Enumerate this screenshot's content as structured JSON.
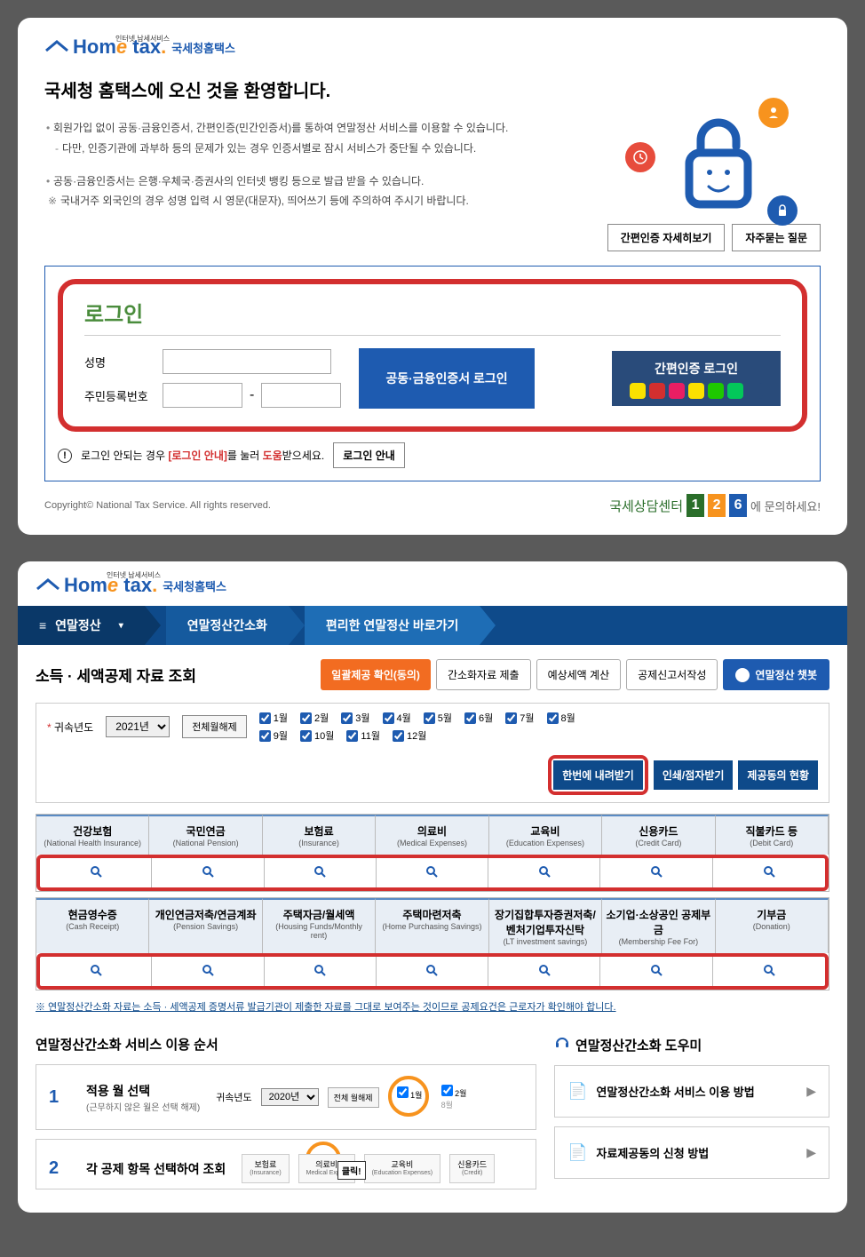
{
  "logo": {
    "hom": "Hom",
    "e": "e",
    "tax": "tax",
    "dot": ".",
    "sub": "국세청홈택스",
    "caption": "인터넷 납세서비스"
  },
  "welcome": {
    "title": "국세청 홈택스에 오신 것을 환영합니다.",
    "info1": "회원가입 없이 공동·금융인증서, 간편인증(민간인증서)를 통하여 연말정산 서비스를 이용할 수 있습니다.",
    "info1a": "다만, 인증기관에 과부하 등의 문제가 있는 경우 인증서별로 잠시 서비스가 중단될 수 있습니다.",
    "info2": "공동·금융인증서는 은행·우체국·증권사의 인터넷 뱅킹 등으로 발급 받을 수 있습니다.",
    "info2a": "국내거주 외국인의 경우 성명 입력 시 영문(대문자), 띄어쓰기 등에 주의하여 주시기 바랍니다.",
    "btn_simple": "간편인증 자세히보기",
    "btn_faq": "자주묻는 질문"
  },
  "login": {
    "title": "로그인",
    "name_label": "성명",
    "rrn_label": "주민등록번호",
    "btn_cert": "공동·금융인증서 로그인",
    "btn_simple": "간편인증 로그인",
    "help_text1": "로그인 안되는 경우 ",
    "help_red": "[로그인 안내]",
    "help_text2": "를 눌러 ",
    "help_red2": "도움",
    "help_text3": "받으세요.",
    "btn_help": "로그인 안내",
    "mini_colors": [
      "#fae100",
      "#d32f2f",
      "#e91e63",
      "#fae100",
      "#1ec800",
      "#03c75a",
      "#294b7a"
    ]
  },
  "footer": {
    "copyright": "Copyright© National Tax Service. All rights reserved.",
    "contact_script": "국세상담센터",
    "contact_tail": "에 문의하세요!"
  },
  "nav": {
    "hamburger": "≡",
    "main": "연말정산",
    "caret": "▾",
    "sub1": "연말정산간소화",
    "sub2": "편리한 연말정산 바로가기"
  },
  "section2": {
    "title": "소득 · 세액공제 자료 조회",
    "btn_confirm": "일괄제공 확인(동의)",
    "btn_submit": "간소화자료 제출",
    "btn_calc": "예상세액 계산",
    "btn_report": "공제신고서작성",
    "btn_chatbot": "연말정산 챗봇"
  },
  "filter": {
    "year_label": "귀속년도",
    "year_value": "2021년",
    "toggle_all": "전체월해제",
    "months": [
      "1월",
      "2월",
      "3월",
      "4월",
      "5월",
      "6월",
      "7월",
      "8월",
      "9월",
      "10월",
      "11월",
      "12월"
    ],
    "btn_download": "한번에 내려받기",
    "btn_print": "인쇄/점자받기",
    "btn_status": "제공동의 현황"
  },
  "categories": {
    "row1": [
      {
        "kr": "건강보험",
        "en": "(National Health Insurance)"
      },
      {
        "kr": "국민연금",
        "en": "(National Pension)"
      },
      {
        "kr": "보험료",
        "en": "(Insurance)"
      },
      {
        "kr": "의료비",
        "en": "(Medical Expenses)"
      },
      {
        "kr": "교육비",
        "en": "(Education Expenses)"
      },
      {
        "kr": "신용카드",
        "en": "(Credit Card)"
      },
      {
        "kr": "직불카드 등",
        "en": "(Debit Card)"
      }
    ],
    "row2": [
      {
        "kr": "현금영수증",
        "en": "(Cash Receipt)"
      },
      {
        "kr": "개인연금저축/연금계좌",
        "en": "(Pension Savings)"
      },
      {
        "kr": "주택자금/월세액",
        "en": "(Housing Funds/Monthly rent)"
      },
      {
        "kr": "주택마련저축",
        "en": "(Home Purchasing Savings)"
      },
      {
        "kr": "장기집합투자증권저축/벤처기업투자신탁",
        "en": "(LT investment savings)"
      },
      {
        "kr": "소기업·소상공인 공제부금",
        "en": "(Membership Fee For)"
      },
      {
        "kr": "기부금",
        "en": "(Donation)"
      }
    ]
  },
  "note": "※ 연말정산간소화 자료는 소득 · 세액공제 증명서류 발급기관이 제출한 자료를 그대로 보여주는 것이므로 공제요건은 근로자가 확인해야 합니다.",
  "steps": {
    "title": "연말정산간소화 서비스 이용 순서",
    "s1_num": "1",
    "s1_label": "적용 월 선택",
    "s1_sub": "(근무하지 않은 월은 선택 해제)",
    "s1_year_label": "귀속년도",
    "s1_year": "2020년",
    "s1_toggle": "전체 월해제",
    "s2_num": "2",
    "s2_label": "각 공제 항목 선택하여 조회",
    "s2_cats": [
      {
        "kr": "보험료",
        "en": "(Insurance)"
      },
      {
        "kr": "의료비",
        "en": "Medical Expen"
      },
      {
        "kr": "교육비",
        "en": "(Education Expenses)"
      },
      {
        "kr": "신용카드",
        "en": "(Credit)"
      }
    ],
    "click": "클릭!"
  },
  "helper": {
    "title": "연말정산간소화 도우미",
    "item1": "연말정산간소화 서비스 이용 방법",
    "item2": "자료제공동의 신청 방법"
  }
}
